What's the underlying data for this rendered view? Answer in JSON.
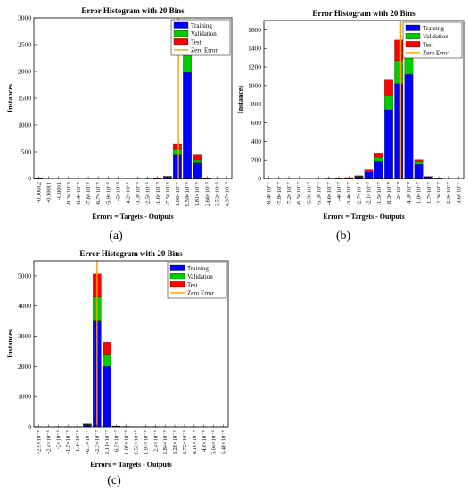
{
  "colors": {
    "training": "#0000ff",
    "validation": "#00cc00",
    "test": "#ff0000",
    "zero_error": "#ff9900"
  },
  "legend": [
    "Training",
    "Validation",
    "Test",
    "Zero Error"
  ],
  "chart_data": [
    {
      "type": "bar",
      "panel_label": "(a)",
      "title": "Error Histogram with 20 Bins",
      "xlabel": "Errors = Targets - Outputs",
      "ylabel": "Instances",
      "ylim": [
        0,
        3000
      ],
      "yticks": [
        0,
        500,
        1000,
        1500,
        2000,
        2500,
        3000
      ],
      "categories": [
        "-0.00012",
        "-0.00011",
        "-0.0001",
        "-9.3×10⁻⁵",
        "-8.4×10⁻⁵",
        "-7.6×10⁻⁵",
        "-6.7×10⁻⁵",
        "-5.9×10⁻⁵",
        "-5×10⁻⁵",
        "-4.2×10⁻⁵",
        "-3.3×10⁻⁵",
        "-2.5×10⁻⁵",
        "-1.6×10⁻⁵",
        "-7.5×10⁻⁶",
        "1.06×10⁻⁶",
        "9.59×10⁻⁶",
        "1.81×10⁻⁵",
        "2.66×10⁻⁵",
        "3.52×10⁻⁵",
        "4.37×10⁻⁵"
      ],
      "zero_error_bin": 14.6,
      "series": [
        {
          "name": "Training",
          "values": [
            8,
            2,
            2,
            2,
            2,
            3,
            3,
            3,
            4,
            4,
            5,
            6,
            10,
            30,
            440,
            1980,
            290,
            10,
            3,
            2
          ]
        },
        {
          "name": "Validation",
          "values": [
            2,
            0,
            0,
            0,
            0,
            1,
            1,
            1,
            1,
            1,
            1,
            1,
            2,
            6,
            110,
            410,
            60,
            2,
            1,
            0
          ]
        },
        {
          "name": "Test",
          "values": [
            2,
            0,
            0,
            0,
            0,
            1,
            1,
            1,
            1,
            1,
            1,
            1,
            2,
            6,
            100,
            420,
            90,
            2,
            1,
            0
          ]
        }
      ]
    },
    {
      "type": "bar",
      "panel_label": "(b)",
      "title": "Error Histogram with 20 Bins",
      "xlabel": "Errors = Targets - Outputs",
      "ylabel": "Instances",
      "ylim": [
        0,
        1700
      ],
      "yticks": [
        0,
        200,
        400,
        600,
        800,
        1000,
        1200,
        1400,
        1600
      ],
      "categories": [
        "-8.4×10⁻⁷",
        "-7.8×10⁻⁷",
        "-7.2×10⁻⁷",
        "-6.5×10⁻⁷",
        "-5.9×10⁻⁷",
        "-5.3×10⁻⁷",
        "-4.6×10⁻⁷",
        "-4×10⁻⁷",
        "-3.4×10⁻⁷",
        "-2.7×10⁻⁷",
        "-2.1×10⁻⁷",
        "-1.5×10⁻⁷",
        "-8.3×10⁻⁸",
        "-2×10⁻⁸",
        "4.3×10⁻⁸",
        "1.0×10⁻⁷",
        "1.7×10⁻⁷",
        "2.3×10⁻⁷",
        "2.9×10⁻⁷",
        "3.6×10⁻⁷"
      ],
      "zero_error_bin": 13.7,
      "series": [
        {
          "name": "Training",
          "values": [
            1,
            1,
            1,
            1,
            1,
            2,
            3,
            4,
            6,
            20,
            70,
            190,
            740,
            1020,
            1120,
            150,
            15,
            4,
            1,
            1
          ]
        },
        {
          "name": "Validation",
          "values": [
            0,
            0,
            0,
            0,
            0,
            0,
            1,
            1,
            2,
            5,
            15,
            40,
            160,
            250,
            230,
            30,
            4,
            1,
            0,
            0
          ]
        },
        {
          "name": "Test",
          "values": [
            0,
            0,
            0,
            0,
            0,
            0,
            1,
            1,
            2,
            5,
            15,
            45,
            160,
            220,
            200,
            25,
            3,
            1,
            0,
            0
          ]
        }
      ]
    },
    {
      "type": "bar",
      "panel_label": "(c)",
      "title": "Error Histogram with 20 Bins",
      "xlabel": "Errors = Targets - Outputs",
      "ylabel": "Instances",
      "ylim": [
        0,
        5500
      ],
      "yticks": [
        0,
        1000,
        2000,
        3000,
        4000,
        5000
      ],
      "categories": [
        "-2.9×10⁻⁶",
        "-2.4×10⁻⁶",
        "-2×10⁻⁶",
        "-1.5×10⁻⁶",
        "-1.1×10⁻⁶",
        "-6.7×10⁻⁷",
        "-2.3×10⁻⁷",
        "2.11×10⁻⁷",
        "6.5×10⁻⁷",
        "1.09×10⁻⁶",
        "1.53×10⁻⁶",
        "1.97×10⁻⁶",
        "2.4×10⁻⁶",
        "2.84×10⁻⁶",
        "3.28×10⁻⁶",
        "3.72×10⁻⁶",
        "4.16×10⁻⁶",
        "4.6×10⁻⁶",
        "5.04×10⁻⁶",
        "5.48×10⁻⁶"
      ],
      "zero_error_bin": 6.5,
      "series": [
        {
          "name": "Training",
          "values": [
            2,
            2,
            3,
            4,
            6,
            70,
            3500,
            2000,
            20,
            10,
            6,
            4,
            3,
            2,
            2,
            2,
            1,
            1,
            1,
            1
          ]
        },
        {
          "name": "Validation",
          "values": [
            0,
            0,
            1,
            1,
            1,
            15,
            800,
            380,
            4,
            2,
            1,
            1,
            1,
            0,
            0,
            0,
            0,
            0,
            0,
            0
          ]
        },
        {
          "name": "Test",
          "values": [
            0,
            0,
            1,
            1,
            1,
            15,
            760,
            420,
            4,
            2,
            1,
            1,
            1,
            0,
            0,
            0,
            0,
            0,
            0,
            0
          ]
        }
      ]
    }
  ]
}
